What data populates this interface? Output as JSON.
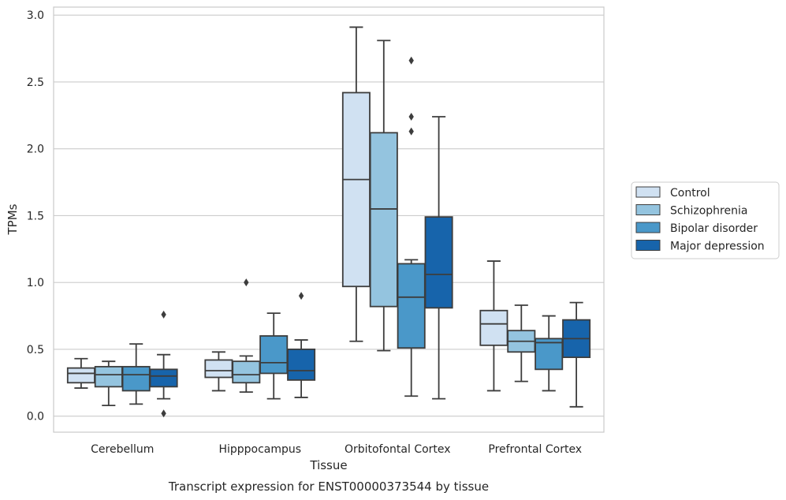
{
  "chart_data": {
    "type": "box",
    "title": "",
    "caption": "Transcript expression for ENST00000373544 by tissue",
    "xlabel": "Tissue",
    "ylabel": "TPMs",
    "ylim": [
      -0.12,
      3.06
    ],
    "yticks": [
      0.0,
      0.5,
      1.0,
      1.5,
      2.0,
      2.5,
      3.0
    ],
    "ytick_labels": [
      "0.0",
      "0.5",
      "1.0",
      "1.5",
      "2.0",
      "2.5",
      "3.0"
    ],
    "grid": "horizontal",
    "legend_position": "right",
    "categories": [
      "Cerebellum",
      "Hipppocampus",
      "Orbitofontal Cortex",
      "Prefrontal Cortex"
    ],
    "series": [
      {
        "name": "Control",
        "color": "#d0e1f2",
        "boxes": [
          {
            "whisker_low": 0.21,
            "q1": 0.25,
            "median": 0.32,
            "q3": 0.36,
            "whisker_high": 0.43,
            "outliers": []
          },
          {
            "whisker_low": 0.19,
            "q1": 0.29,
            "median": 0.34,
            "q3": 0.42,
            "whisker_high": 0.48,
            "outliers": []
          },
          {
            "whisker_low": 0.56,
            "q1": 0.97,
            "median": 1.77,
            "q3": 2.42,
            "whisker_high": 2.91,
            "outliers": []
          },
          {
            "whisker_low": 0.19,
            "q1": 0.53,
            "median": 0.69,
            "q3": 0.79,
            "whisker_high": 1.16,
            "outliers": []
          }
        ]
      },
      {
        "name": "Schizophrenia",
        "color": "#94c4df",
        "boxes": [
          {
            "whisker_low": 0.08,
            "q1": 0.22,
            "median": 0.31,
            "q3": 0.37,
            "whisker_high": 0.41,
            "outliers": []
          },
          {
            "whisker_low": 0.18,
            "q1": 0.25,
            "median": 0.31,
            "q3": 0.41,
            "whisker_high": 0.45,
            "outliers": [
              1.0
            ]
          },
          {
            "whisker_low": 0.49,
            "q1": 0.82,
            "median": 1.55,
            "q3": 2.12,
            "whisker_high": 2.81,
            "outliers": []
          },
          {
            "whisker_low": 0.26,
            "q1": 0.48,
            "median": 0.56,
            "q3": 0.64,
            "whisker_high": 0.83,
            "outliers": []
          }
        ]
      },
      {
        "name": "Bipolar disorder",
        "color": "#4a98c9",
        "boxes": [
          {
            "whisker_low": 0.09,
            "q1": 0.19,
            "median": 0.31,
            "q3": 0.37,
            "whisker_high": 0.54,
            "outliers": []
          },
          {
            "whisker_low": 0.13,
            "q1": 0.32,
            "median": 0.4,
            "q3": 0.6,
            "whisker_high": 0.77,
            "outliers": []
          },
          {
            "whisker_low": 0.15,
            "q1": 0.51,
            "median": 0.89,
            "q3": 1.14,
            "whisker_high": 1.17,
            "outliers": [
              2.13,
              2.24,
              2.66
            ]
          },
          {
            "whisker_low": 0.19,
            "q1": 0.35,
            "median": 0.55,
            "q3": 0.58,
            "whisker_high": 0.75,
            "outliers": []
          }
        ]
      },
      {
        "name": "Major depression",
        "color": "#1764ab",
        "boxes": [
          {
            "whisker_low": 0.13,
            "q1": 0.22,
            "median": 0.3,
            "q3": 0.35,
            "whisker_high": 0.46,
            "outliers": [
              0.02,
              0.76
            ]
          },
          {
            "whisker_low": 0.14,
            "q1": 0.27,
            "median": 0.34,
            "q3": 0.5,
            "whisker_high": 0.57,
            "outliers": [
              0.9
            ]
          },
          {
            "whisker_low": 0.13,
            "q1": 0.81,
            "median": 1.06,
            "q3": 1.49,
            "whisker_high": 2.24,
            "outliers": []
          },
          {
            "whisker_low": 0.07,
            "q1": 0.44,
            "median": 0.58,
            "q3": 0.72,
            "whisker_high": 0.85,
            "outliers": []
          }
        ]
      }
    ]
  }
}
